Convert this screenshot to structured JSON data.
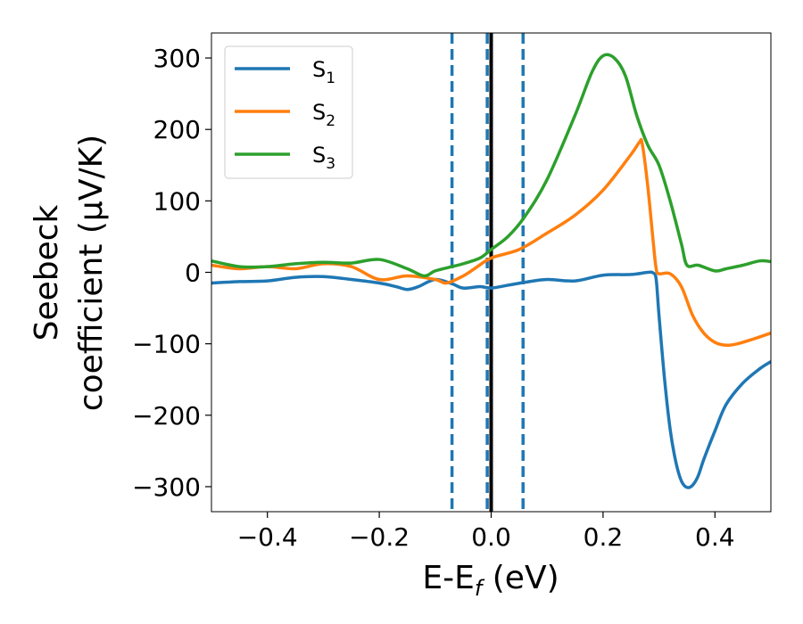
{
  "chart_data": {
    "type": "line",
    "title": "",
    "xlabel": "E-E",
    "xlabel_sub": "f",
    "xlabel_unit": " (eV)",
    "ylabel_line1": "Seebeck",
    "ylabel_line2": "coefficient  (μV/K)",
    "xlim": [
      -0.5,
      0.5
    ],
    "ylim": [
      -335,
      335
    ],
    "xticks": [
      -0.4,
      -0.2,
      0.0,
      0.2,
      0.4
    ],
    "xtick_labels": [
      "−0.4",
      "−0.2",
      "0.0",
      "0.2",
      "0.4"
    ],
    "yticks": [
      -300,
      -200,
      -100,
      0,
      100,
      200,
      300
    ],
    "ytick_labels": [
      "−300",
      "−200",
      "−100",
      "0",
      "100",
      "200",
      "300"
    ],
    "grid": false,
    "legend_position": "top-left",
    "vlines": [
      {
        "x": -0.07,
        "style": "dashed",
        "color": "#1f77b4"
      },
      {
        "x": -0.007,
        "style": "dashed",
        "color": "#1f77b4"
      },
      {
        "x": 0.057,
        "style": "dashed",
        "color": "#1f77b4"
      },
      {
        "x": 0.0,
        "style": "solid",
        "color": "#000000"
      }
    ],
    "series": [
      {
        "name": "S",
        "name_sub": "1",
        "color": "#1f77b4",
        "points": [
          [
            -0.5,
            -15
          ],
          [
            -0.45,
            -13
          ],
          [
            -0.4,
            -12
          ],
          [
            -0.35,
            -7
          ],
          [
            -0.3,
            -6
          ],
          [
            -0.25,
            -10
          ],
          [
            -0.2,
            -15
          ],
          [
            -0.17,
            -20
          ],
          [
            -0.15,
            -24
          ],
          [
            -0.13,
            -20
          ],
          [
            -0.1,
            -10
          ],
          [
            -0.07,
            -16
          ],
          [
            -0.05,
            -22
          ],
          [
            -0.02,
            -20
          ],
          [
            0.0,
            -22
          ],
          [
            0.03,
            -18
          ],
          [
            0.06,
            -14
          ],
          [
            0.1,
            -10
          ],
          [
            0.15,
            -12
          ],
          [
            0.2,
            -4
          ],
          [
            0.25,
            -3
          ],
          [
            0.28,
            0
          ],
          [
            0.29,
            -1
          ],
          [
            0.295,
            -10
          ],
          [
            0.3,
            -60
          ],
          [
            0.31,
            -150
          ],
          [
            0.32,
            -220
          ],
          [
            0.33,
            -265
          ],
          [
            0.34,
            -292
          ],
          [
            0.35,
            -301
          ],
          [
            0.36,
            -298
          ],
          [
            0.37,
            -285
          ],
          [
            0.38,
            -262
          ],
          [
            0.4,
            -222
          ],
          [
            0.42,
            -185
          ],
          [
            0.45,
            -155
          ],
          [
            0.48,
            -135
          ],
          [
            0.5,
            -125
          ]
        ]
      },
      {
        "name": "S",
        "name_sub": "2",
        "color": "#ff7f0e",
        "points": [
          [
            -0.5,
            10
          ],
          [
            -0.45,
            5
          ],
          [
            -0.4,
            8
          ],
          [
            -0.35,
            5
          ],
          [
            -0.3,
            12
          ],
          [
            -0.25,
            8
          ],
          [
            -0.2,
            -10
          ],
          [
            -0.15,
            -5
          ],
          [
            -0.1,
            -10
          ],
          [
            -0.08,
            -15
          ],
          [
            -0.05,
            -5
          ],
          [
            -0.03,
            5
          ],
          [
            0.0,
            20
          ],
          [
            0.05,
            32
          ],
          [
            0.1,
            55
          ],
          [
            0.15,
            80
          ],
          [
            0.2,
            115
          ],
          [
            0.25,
            165
          ],
          [
            0.265,
            182
          ],
          [
            0.27,
            180
          ],
          [
            0.28,
            120
          ],
          [
            0.29,
            40
          ],
          [
            0.295,
            5
          ],
          [
            0.3,
            -2
          ],
          [
            0.32,
            -2
          ],
          [
            0.34,
            -20
          ],
          [
            0.36,
            -60
          ],
          [
            0.38,
            -85
          ],
          [
            0.4,
            -98
          ],
          [
            0.42,
            -102
          ],
          [
            0.44,
            -100
          ],
          [
            0.47,
            -93
          ],
          [
            0.5,
            -85
          ]
        ]
      },
      {
        "name": "S",
        "name_sub": "3",
        "color": "#2ca02c",
        "points": [
          [
            -0.5,
            16
          ],
          [
            -0.45,
            8
          ],
          [
            -0.4,
            8
          ],
          [
            -0.35,
            12
          ],
          [
            -0.3,
            14
          ],
          [
            -0.25,
            13
          ],
          [
            -0.2,
            18
          ],
          [
            -0.15,
            5
          ],
          [
            -0.12,
            -5
          ],
          [
            -0.1,
            2
          ],
          [
            -0.07,
            8
          ],
          [
            -0.05,
            12
          ],
          [
            -0.02,
            20
          ],
          [
            0.0,
            32
          ],
          [
            0.03,
            50
          ],
          [
            0.06,
            78
          ],
          [
            0.1,
            130
          ],
          [
            0.15,
            220
          ],
          [
            0.18,
            280
          ],
          [
            0.2,
            303
          ],
          [
            0.22,
            300
          ],
          [
            0.24,
            275
          ],
          [
            0.26,
            220
          ],
          [
            0.28,
            178
          ],
          [
            0.3,
            150
          ],
          [
            0.32,
            100
          ],
          [
            0.34,
            40
          ],
          [
            0.35,
            10
          ],
          [
            0.37,
            10
          ],
          [
            0.4,
            2
          ],
          [
            0.42,
            5
          ],
          [
            0.45,
            10
          ],
          [
            0.48,
            16
          ],
          [
            0.5,
            15
          ]
        ]
      }
    ]
  }
}
